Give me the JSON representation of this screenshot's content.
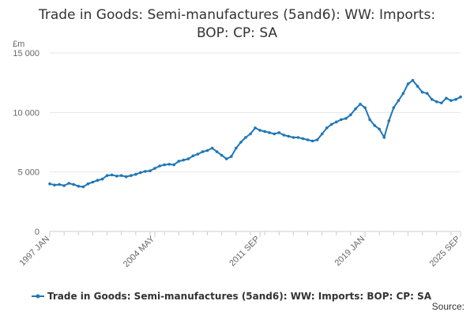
{
  "chart_data": {
    "type": "line",
    "title_line1": "Trade in Goods: Semi-manufactures (5and6): WW: Imports:",
    "title_line2": "BOP: CP: SA",
    "unit_label": "£m",
    "ylim": [
      0,
      15000
    ],
    "y_ticks": [
      {
        "value": 0,
        "label": "0"
      },
      {
        "value": 5000,
        "label": "5 000"
      },
      {
        "value": 10000,
        "label": "10 000"
      },
      {
        "value": 15000,
        "label": "15 000"
      }
    ],
    "xlim": [
      "1997-01",
      "2025-09"
    ],
    "x_ticks": [
      {
        "value": "1997-01",
        "label": "1997 JAN"
      },
      {
        "value": "2004-05",
        "label": "2004 MAY"
      },
      {
        "value": "2011-09",
        "label": "2011 SEP"
      },
      {
        "value": "2019-01",
        "label": "2019 JAN"
      },
      {
        "value": "2025-09",
        "label": "2025 SEP"
      }
    ],
    "grid": true,
    "legend_position": "bottom",
    "series_color": "#1f77b4",
    "series": [
      {
        "name": "Trade in Goods: Semi-manufactures (5and6): WW: Imports: BOP: CP: SA",
        "points": [
          [
            "1997-01",
            4000
          ],
          [
            "1997-05",
            3900
          ],
          [
            "1997-09",
            3950
          ],
          [
            "1998-01",
            3850
          ],
          [
            "1998-05",
            4050
          ],
          [
            "1998-09",
            3950
          ],
          [
            "1999-01",
            3800
          ],
          [
            "1999-05",
            3750
          ],
          [
            "1999-09",
            4000
          ],
          [
            "2000-01",
            4150
          ],
          [
            "2000-05",
            4300
          ],
          [
            "2000-09",
            4400
          ],
          [
            "2001-01",
            4700
          ],
          [
            "2001-05",
            4750
          ],
          [
            "2001-09",
            4650
          ],
          [
            "2002-01",
            4700
          ],
          [
            "2002-05",
            4600
          ],
          [
            "2002-09",
            4700
          ],
          [
            "2003-01",
            4800
          ],
          [
            "2003-05",
            4950
          ],
          [
            "2003-09",
            5050
          ],
          [
            "2004-01",
            5100
          ],
          [
            "2004-05",
            5300
          ],
          [
            "2004-09",
            5500
          ],
          [
            "2005-01",
            5600
          ],
          [
            "2005-05",
            5650
          ],
          [
            "2005-09",
            5600
          ],
          [
            "2006-01",
            5900
          ],
          [
            "2006-05",
            6000
          ],
          [
            "2006-09",
            6100
          ],
          [
            "2007-01",
            6350
          ],
          [
            "2007-05",
            6500
          ],
          [
            "2007-09",
            6700
          ],
          [
            "2008-01",
            6800
          ],
          [
            "2008-05",
            7000
          ],
          [
            "2008-09",
            6700
          ],
          [
            "2009-01",
            6400
          ],
          [
            "2009-05",
            6100
          ],
          [
            "2009-09",
            6300
          ],
          [
            "2010-01",
            7000
          ],
          [
            "2010-05",
            7500
          ],
          [
            "2010-09",
            7900
          ],
          [
            "2011-01",
            8200
          ],
          [
            "2011-05",
            8700
          ],
          [
            "2011-09",
            8500
          ],
          [
            "2012-01",
            8400
          ],
          [
            "2012-05",
            8300
          ],
          [
            "2012-09",
            8200
          ],
          [
            "2013-01",
            8300
          ],
          [
            "2013-05",
            8100
          ],
          [
            "2013-09",
            8000
          ],
          [
            "2014-01",
            7900
          ],
          [
            "2014-05",
            7900
          ],
          [
            "2014-09",
            7800
          ],
          [
            "2015-01",
            7700
          ],
          [
            "2015-05",
            7600
          ],
          [
            "2015-09",
            7700
          ],
          [
            "2016-01",
            8200
          ],
          [
            "2016-05",
            8700
          ],
          [
            "2016-09",
            9000
          ],
          [
            "2017-01",
            9200
          ],
          [
            "2017-05",
            9400
          ],
          [
            "2017-09",
            9500
          ],
          [
            "2018-01",
            9800
          ],
          [
            "2018-05",
            10300
          ],
          [
            "2018-09",
            10700
          ],
          [
            "2019-01",
            10400
          ],
          [
            "2019-05",
            9400
          ],
          [
            "2019-09",
            8900
          ],
          [
            "2020-01",
            8600
          ],
          [
            "2020-05",
            7900
          ],
          [
            "2020-09",
            9300
          ],
          [
            "2021-01",
            10400
          ],
          [
            "2021-05",
            11000
          ],
          [
            "2021-09",
            11600
          ],
          [
            "2022-01",
            12400
          ],
          [
            "2022-05",
            12700
          ],
          [
            "2022-09",
            12200
          ],
          [
            "2023-01",
            11700
          ],
          [
            "2023-05",
            11600
          ],
          [
            "2023-09",
            11100
          ],
          [
            "2024-01",
            10900
          ],
          [
            "2024-05",
            10800
          ],
          [
            "2024-09",
            11200
          ],
          [
            "2025-01",
            11000
          ],
          [
            "2025-05",
            11100
          ],
          [
            "2025-09",
            11300
          ]
        ]
      }
    ],
    "source_label": "Source:"
  }
}
